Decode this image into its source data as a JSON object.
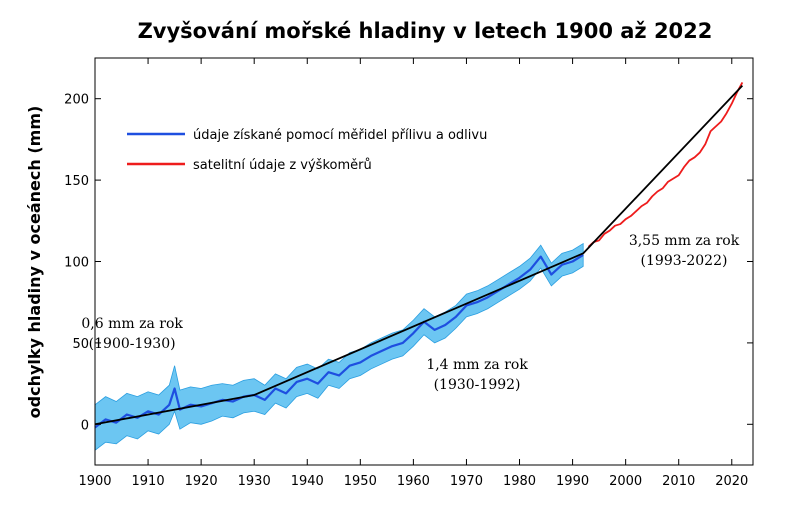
{
  "chart_data": {
    "type": "line",
    "title": "Zvyšování mořské hladiny v letech 1900 až 2022",
    "xlabel": "",
    "ylabel": "odchylky hladiny v oceánech (mm)",
    "xlim": [
      1900,
      2024
    ],
    "ylim": [
      -25,
      225
    ],
    "x_ticks": [
      1900,
      1910,
      1920,
      1930,
      1940,
      1950,
      1960,
      1970,
      1980,
      1990,
      2000,
      2010,
      2020
    ],
    "y_ticks": [
      0,
      50,
      100,
      150,
      200
    ],
    "grid": false,
    "legend_position": "top-left",
    "legend": [
      {
        "label": "údaje získané pomocí měřidel přílivu a odlivu",
        "color": "#1e4fe0"
      },
      {
        "label": "satelitní údaje z výškoměrů",
        "color": "#ee1c1c"
      }
    ],
    "series": [
      {
        "name": "údaje získané pomocí měřidel přílivu a odlivu",
        "color": "#1e4fe0",
        "band_color": "#6cc6f2",
        "x": [
          1900,
          1902,
          1904,
          1906,
          1908,
          1910,
          1912,
          1914,
          1915,
          1916,
          1918,
          1920,
          1922,
          1924,
          1926,
          1928,
          1930,
          1932,
          1934,
          1936,
          1938,
          1940,
          1942,
          1944,
          1946,
          1948,
          1950,
          1952,
          1954,
          1956,
          1958,
          1960,
          1962,
          1964,
          1966,
          1968,
          1970,
          1972,
          1974,
          1976,
          1978,
          1980,
          1982,
          1984,
          1986,
          1988,
          1990,
          1992
        ],
        "y": [
          -2,
          3,
          1,
          6,
          4,
          8,
          6,
          12,
          22,
          9,
          12,
          11,
          13,
          15,
          14,
          17,
          18,
          15,
          22,
          19,
          26,
          28,
          25,
          32,
          30,
          36,
          38,
          42,
          45,
          48,
          50,
          56,
          63,
          58,
          61,
          66,
          73,
          75,
          78,
          82,
          86,
          90,
          95,
          103,
          92,
          98,
          100,
          104
        ],
        "band_halfwidth": [
          14,
          14,
          13,
          13,
          13,
          12,
          12,
          12,
          14,
          12,
          11,
          11,
          11,
          10,
          10,
          10,
          10,
          9,
          9,
          9,
          9,
          9,
          9,
          8,
          8,
          8,
          8,
          8,
          8,
          8,
          8,
          8,
          8,
          8,
          8,
          7,
          7,
          7,
          7,
          7,
          7,
          7,
          7,
          7,
          7,
          7,
          7,
          7
        ]
      },
      {
        "name": "satelitní údaje z výškoměrů",
        "color": "#ee1c1c",
        "x": [
          1993,
          1994,
          1995,
          1996,
          1997,
          1998,
          1999,
          2000,
          2001,
          2002,
          2003,
          2004,
          2005,
          2006,
          2007,
          2008,
          2009,
          2010,
          2011,
          2012,
          2013,
          2014,
          2015,
          2016,
          2017,
          2018,
          2019,
          2020,
          2021,
          2022
        ],
        "y": [
          109,
          112,
          113,
          117,
          119,
          122,
          123,
          126,
          128,
          131,
          134,
          136,
          140,
          143,
          145,
          149,
          151,
          153,
          158,
          162,
          164,
          167,
          172,
          180,
          183,
          186,
          191,
          197,
          204,
          210
        ]
      },
      {
        "name": "trend",
        "color": "#000000",
        "x": [
          1900,
          1930,
          1992,
          2022
        ],
        "y": [
          0,
          18,
          105,
          208
        ]
      }
    ],
    "annotations": [
      {
        "line1": "0,6 mm za rok",
        "line2": "(1900-1930)",
        "x": 1907,
        "y": 59
      },
      {
        "line1": "1,4 mm za rok",
        "line2": "(1930-1992)",
        "x": 1972,
        "y": 34
      },
      {
        "line1": "3,55 mm za rok",
        "line2": "(1993-2022)",
        "x": 2011,
        "y": 110
      }
    ]
  }
}
